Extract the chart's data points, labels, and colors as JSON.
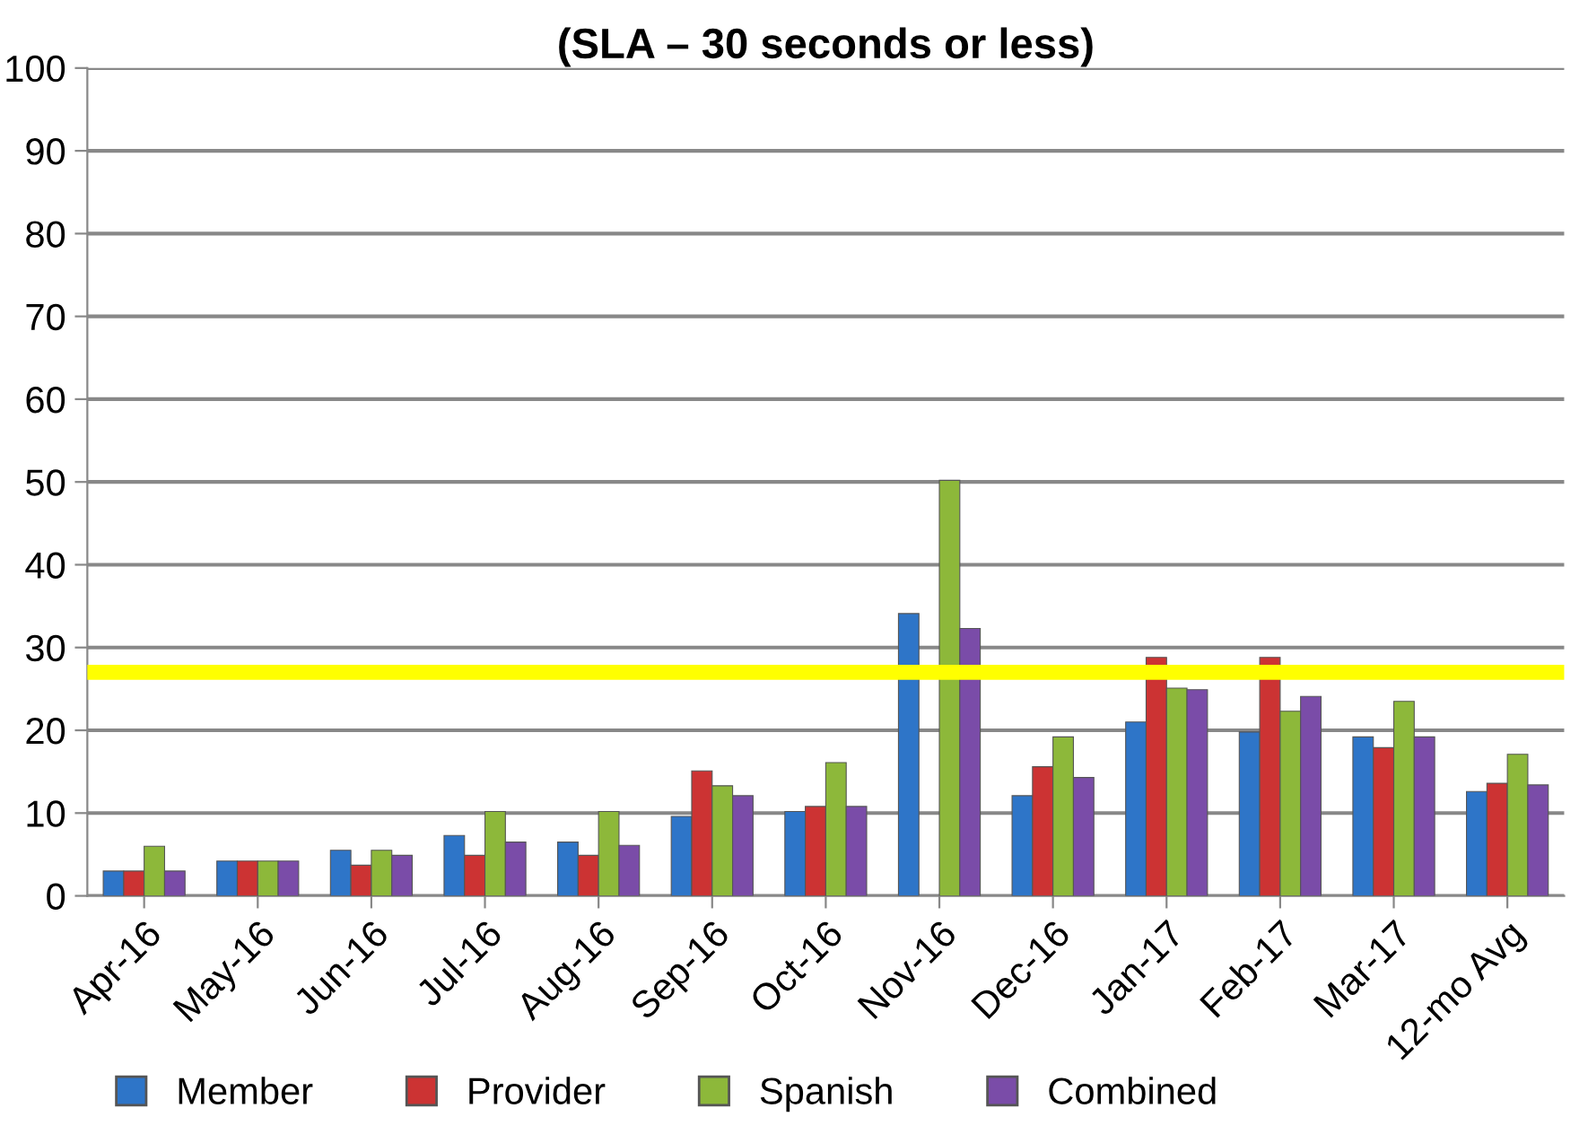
{
  "chart_data": {
    "type": "bar",
    "title": "(SLA – 30 seconds or less)",
    "categories": [
      "Apr-16",
      "May-16",
      "Jun-16",
      "Jul-16",
      "Aug-16",
      "Sep-16",
      "Oct-16",
      "Nov-16",
      "Dec-16",
      "Jan-17",
      "Feb-17",
      "Mar-17",
      "12-mo Avg"
    ],
    "series": [
      {
        "name": "Member",
        "color": "#2e75c8",
        "values": [
          3,
          4.2,
          5.5,
          7.3,
          6.5,
          9.6,
          10.2,
          34.1,
          12.1,
          21,
          19.8,
          19.2,
          12.6
        ]
      },
      {
        "name": "Provider",
        "color": "#cc3333",
        "values": [
          3,
          4.2,
          3.7,
          4.9,
          4.9,
          15.1,
          10.8,
          null,
          15.6,
          28.8,
          28.8,
          17.9,
          13.6
        ]
      },
      {
        "name": "Spanish",
        "color": "#8db83a",
        "values": [
          6,
          4.2,
          5.5,
          10.2,
          10.2,
          13.3,
          16.1,
          50.2,
          19.2,
          25.1,
          22.3,
          23.5,
          17.1
        ]
      },
      {
        "name": "Combined",
        "color": "#7a4ca8",
        "values": [
          3,
          4.2,
          4.9,
          6.5,
          6.1,
          12.1,
          10.8,
          32.3,
          14.3,
          24.9,
          24.1,
          19.2,
          13.4
        ]
      }
    ],
    "ylim": [
      0,
      100
    ],
    "yticks": [
      0,
      10,
      20,
      30,
      40,
      50,
      60,
      70,
      80,
      90,
      100
    ],
    "grid": "y",
    "legend": "bottom",
    "ref_lines": [
      {
        "axis": "y",
        "value": 27,
        "color": "#ffff00"
      }
    ]
  }
}
